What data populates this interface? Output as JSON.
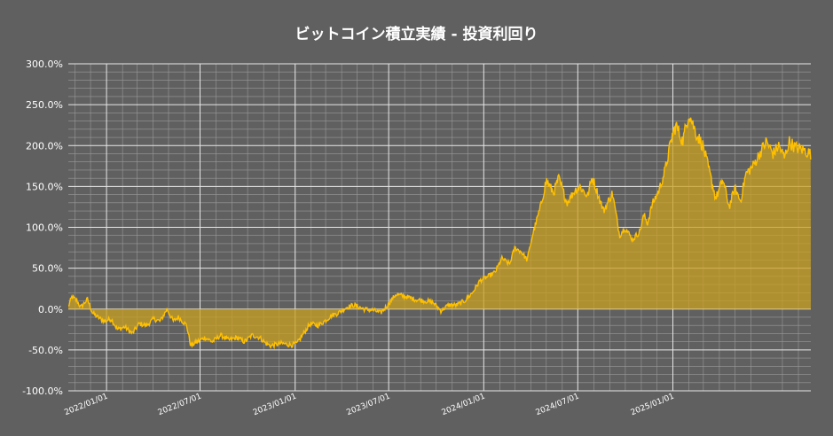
{
  "colors": {
    "background": "#606060",
    "grid_major": "#e8e8e8",
    "grid_minor": "#9a9a9a",
    "line": "#ffc000",
    "fill": "#c9a021"
  },
  "chart_data": {
    "type": "area",
    "title": "ビットコイン積立実績 - 投資利回り",
    "xlabel": "",
    "ylabel": "",
    "ylim": [
      -100,
      300
    ],
    "y_unit": "%",
    "y_ticks": [
      "300.0%",
      "250.0%",
      "200.0%",
      "150.0%",
      "100.0%",
      "50.0%",
      "0.0%",
      "-50.0%",
      "-100.0%"
    ],
    "xlim": [
      "2021-10-19",
      "2025-09-25"
    ],
    "x_ticks": [
      "2022/01/01",
      "2022/07/01",
      "2023/01/01",
      "2023/07/01",
      "2024/01/01",
      "2024/07/01",
      "2025/01/01"
    ],
    "grid": true,
    "legend": "none",
    "series": [
      {
        "x": [
          "2021-10-19",
          "2021-10-26",
          "2021-11-05",
          "2021-11-12",
          "2021-11-25",
          "2021-12-05",
          "2021-12-15",
          "2021-12-28",
          "2022-01-10",
          "2022-01-22",
          "2022-02-05",
          "2022-02-20",
          "2022-03-05",
          "2022-03-20",
          "2022-04-02",
          "2022-04-15",
          "2022-04-28",
          "2022-05-10",
          "2022-05-20",
          "2022-06-05",
          "2022-06-13",
          "2022-06-25",
          "2022-07-10",
          "2022-07-25",
          "2022-08-10",
          "2022-08-25",
          "2022-09-10",
          "2022-09-25",
          "2022-10-10",
          "2022-10-25",
          "2022-11-05",
          "2022-11-15",
          "2022-12-05",
          "2022-12-25",
          "2023-01-05",
          "2023-01-15",
          "2023-01-30",
          "2023-02-15",
          "2023-03-01",
          "2023-03-12",
          "2023-03-25",
          "2023-04-10",
          "2023-04-25",
          "2023-05-15",
          "2023-06-05",
          "2023-06-15",
          "2023-06-25",
          "2023-07-15",
          "2023-08-05",
          "2023-08-20",
          "2023-09-10",
          "2023-09-25",
          "2023-10-10",
          "2023-10-25",
          "2023-11-10",
          "2023-11-25",
          "2023-12-10",
          "2023-12-25",
          "2024-01-10",
          "2024-01-23",
          "2024-02-05",
          "2024-02-20",
          "2024-03-01",
          "2024-03-14",
          "2024-03-25",
          "2024-04-05",
          "2024-04-20",
          "2024-05-01",
          "2024-05-15",
          "2024-05-25",
          "2024-06-10",
          "2024-06-25",
          "2024-07-05",
          "2024-07-20",
          "2024-07-29",
          "2024-08-05",
          "2024-08-20",
          "2024-09-06",
          "2024-09-20",
          "2024-09-30",
          "2024-10-15",
          "2024-10-29",
          "2024-11-06",
          "2024-11-13",
          "2024-11-22",
          "2024-12-05",
          "2024-12-17",
          "2024-12-30",
          "2025-01-07",
          "2025-01-20",
          "2025-02-01",
          "2025-02-15",
          "2025-02-28",
          "2025-03-10",
          "2025-03-25",
          "2025-04-08",
          "2025-04-20",
          "2025-05-01",
          "2025-05-12",
          "2025-05-22",
          "2025-06-05",
          "2025-06-22",
          "2025-07-01",
          "2025-07-14",
          "2025-07-25",
          "2025-08-05",
          "2025-08-14",
          "2025-08-25",
          "2025-09-10",
          "2025-09-25"
        ],
        "y": [
          3,
          15,
          10,
          2,
          12,
          -5,
          -10,
          -15,
          -12,
          -25,
          -22,
          -30,
          -18,
          -20,
          -12,
          -15,
          0,
          -15,
          -10,
          -20,
          -45,
          -40,
          -35,
          -40,
          -32,
          -38,
          -35,
          -40,
          -32,
          -35,
          -42,
          -45,
          -42,
          -44,
          -42,
          -32,
          -18,
          -20,
          -14,
          -8,
          -5,
          2,
          5,
          0,
          -2,
          -5,
          2,
          18,
          15,
          12,
          10,
          8,
          -2,
          5,
          5,
          10,
          20,
          35,
          40,
          45,
          62,
          55,
          75,
          70,
          60,
          92,
          125,
          158,
          142,
          160,
          130,
          145,
          150,
          138,
          162,
          148,
          120,
          142,
          90,
          100,
          85,
          95,
          115,
          105,
          128,
          145,
          170,
          210,
          225,
          205,
          240,
          215,
          200,
          175,
          135,
          158,
          125,
          148,
          132,
          165,
          175,
          195,
          205,
          190,
          200,
          185,
          205,
          198,
          195,
          190
        ]
      }
    ]
  }
}
